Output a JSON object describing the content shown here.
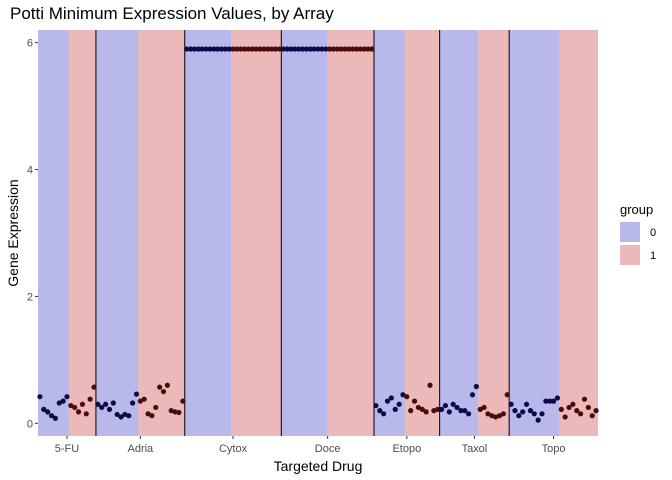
{
  "chart_data": {
    "type": "scatter",
    "title": "Potti Minimum Expression Values, by Array",
    "xlabel": "Targeted Drug",
    "ylabel": "Gene Expression",
    "ylim": [
      -0.2,
      6.2
    ],
    "yticks": [
      0,
      2,
      4,
      6
    ],
    "legend": {
      "title": "group",
      "position": "right",
      "entries": [
        {
          "label": "0",
          "color": "#B8B8EA"
        },
        {
          "label": "1",
          "color": "#EBB9B9"
        }
      ]
    },
    "panel_background": "#ebebeb",
    "point_color_group0": "#0A0A4A",
    "point_color_group1": "#4A0A0A",
    "drugs": [
      {
        "name": "5-FU",
        "group0": [
          0.42,
          0.22,
          0.18,
          0.12,
          0.08,
          0.32,
          0.35,
          0.42
        ],
        "group1": [
          0.28,
          0.25,
          0.18,
          0.3,
          0.15,
          0.38,
          0.57
        ]
      },
      {
        "name": "Adria",
        "group0": [
          0.3,
          0.25,
          0.3,
          0.22,
          0.32,
          0.14,
          0.1,
          0.14,
          0.12,
          0.32,
          0.46
        ],
        "group1": [
          0.35,
          0.38,
          0.15,
          0.12,
          0.25,
          0.57,
          0.5,
          0.6,
          0.2,
          0.18,
          0.17,
          0.35
        ]
      },
      {
        "name": "Cytox",
        "group0": [
          5.9,
          5.9,
          5.9,
          5.9,
          5.9,
          5.9,
          5.9,
          5.9,
          5.9,
          5.9,
          5.9,
          5.9
        ],
        "group1": [
          5.9,
          5.9,
          5.9,
          5.9,
          5.9,
          5.9,
          5.9,
          5.9,
          5.9,
          5.9,
          5.9,
          5.9,
          5.9
        ]
      },
      {
        "name": "Doce",
        "group0": [
          5.9,
          5.9,
          5.9,
          5.9,
          5.9,
          5.9,
          5.9,
          5.9,
          5.9,
          5.9,
          5.9,
          5.9
        ],
        "group1": [
          5.9,
          5.9,
          5.9,
          5.9,
          5.9,
          5.9,
          5.9,
          5.9,
          5.9,
          5.9,
          5.9,
          5.9
        ]
      },
      {
        "name": "Etopo",
        "group0": [
          0.28,
          0.2,
          0.15,
          0.35,
          0.4,
          0.22,
          0.3,
          0.45
        ],
        "group1": [
          0.42,
          0.2,
          0.35,
          0.25,
          0.22,
          0.18,
          0.6,
          0.2,
          0.22
        ]
      },
      {
        "name": "Taxol",
        "group0": [
          0.22,
          0.28,
          0.18,
          0.3,
          0.25,
          0.2,
          0.2,
          0.15,
          0.45,
          0.58
        ],
        "group1": [
          0.22,
          0.25,
          0.15,
          0.12,
          0.1,
          0.12,
          0.15,
          0.45
        ]
      },
      {
        "name": "Topo",
        "group0": [
          0.3,
          0.2,
          0.12,
          0.18,
          0.3,
          0.2,
          0.15,
          0.05,
          0.15,
          0.35,
          0.35,
          0.35,
          0.4
        ],
        "group1": [
          0.22,
          0.1,
          0.25,
          0.3,
          0.2,
          0.15,
          0.38,
          0.25,
          0.12,
          0.2
        ]
      }
    ]
  }
}
